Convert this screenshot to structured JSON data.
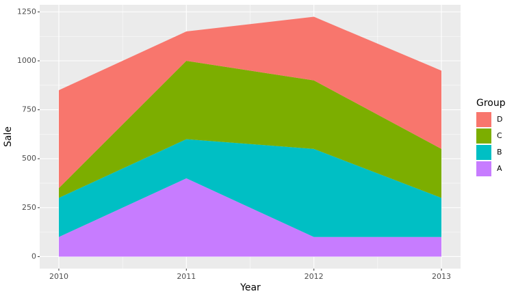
{
  "chart_data": {
    "type": "area",
    "stacked": true,
    "x_label": "Year",
    "y_label": "Sale",
    "x": [
      2010,
      2011,
      2012,
      2013
    ],
    "series": [
      {
        "name": "A",
        "color": "#C77CFF",
        "values": [
          100,
          400,
          100,
          100
        ]
      },
      {
        "name": "B",
        "color": "#00BFC4",
        "values": [
          200,
          200,
          450,
          200
        ]
      },
      {
        "name": "C",
        "color": "#7CAE00",
        "values": [
          50,
          400,
          350,
          250
        ]
      },
      {
        "name": "D",
        "color": "#F8766D",
        "values": [
          500,
          150,
          325,
          400
        ]
      }
    ],
    "legend_title": "Group",
    "legend_position": "right",
    "xlim": [
      2009.85,
      2013.15
    ],
    "xticks": [
      2010,
      2011,
      2012,
      2013
    ],
    "ylim": [
      -61.25,
      1286.25
    ],
    "yticks": [
      0,
      250,
      500,
      750,
      1000,
      1250
    ],
    "grid": true
  }
}
